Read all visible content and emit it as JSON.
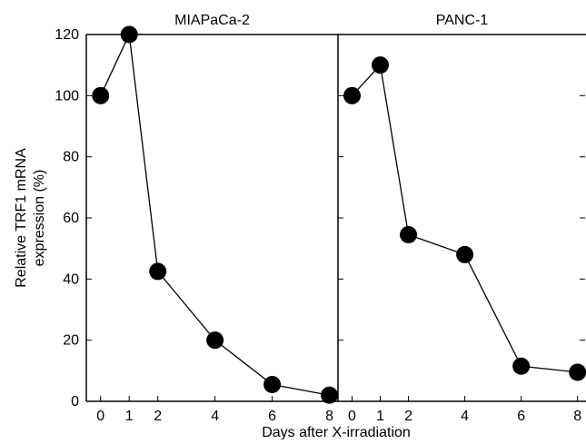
{
  "chart_data": {
    "type": "line",
    "ylabel_lines": [
      "Relative TRF1 mRNA",
      "expression (%)"
    ],
    "xlabel": "Days after X-irradiation",
    "ylim": [
      0,
      120
    ],
    "yticks": [
      0,
      20,
      40,
      60,
      80,
      100,
      120
    ],
    "xlim": [
      -0.5,
      8.3
    ],
    "xticks": [
      0,
      1,
      2,
      4,
      6,
      8
    ],
    "grid": false,
    "legend": "none",
    "colors": {
      "line": "#000000",
      "marker": "#000000"
    },
    "panels": [
      {
        "title": "MIAPaCa-2",
        "x": [
          0,
          1,
          2,
          4,
          6,
          8
        ],
        "y": [
          100,
          120,
          42.5,
          20,
          5.5,
          2
        ]
      },
      {
        "title": "PANC-1",
        "x": [
          0,
          1,
          2,
          4,
          6,
          8
        ],
        "y": [
          100,
          110,
          54.5,
          48,
          11.5,
          9.5
        ]
      }
    ]
  }
}
